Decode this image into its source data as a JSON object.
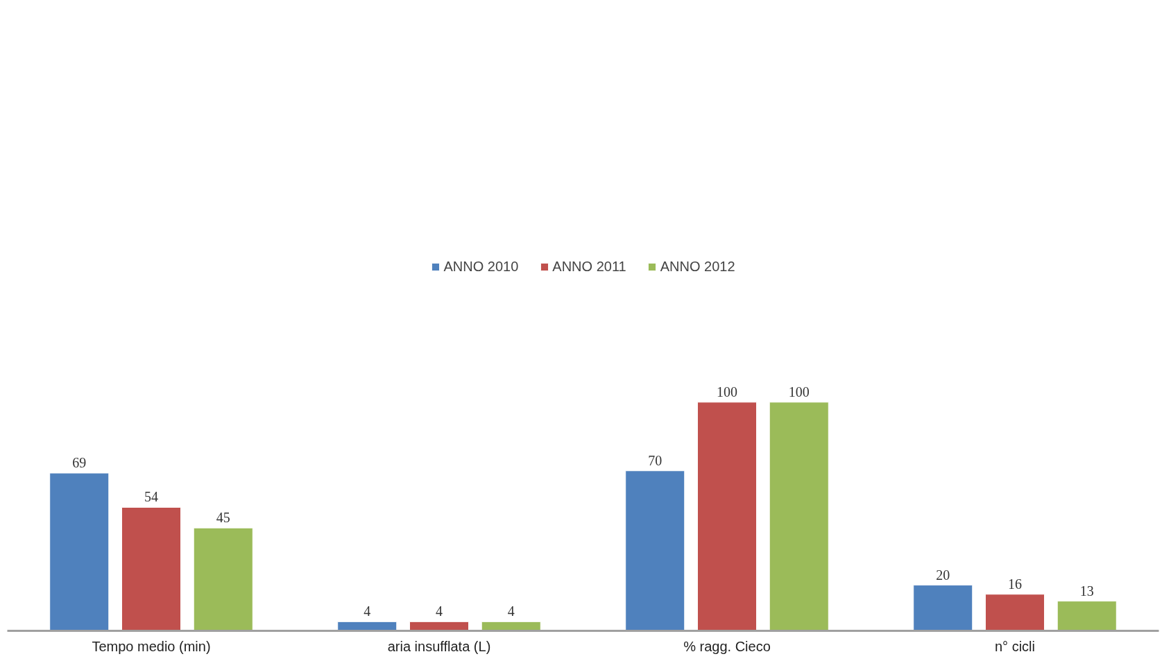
{
  "chart_data": {
    "type": "bar",
    "categories": [
      "Tempo medio (min)",
      "aria insufflata (L)",
      "% ragg. Cieco",
      "n° cicli"
    ],
    "series": [
      {
        "name": "ANNO 2010",
        "color": "#4f81bd",
        "values": [
          69,
          4,
          70,
          20
        ]
      },
      {
        "name": "ANNO 2011",
        "color": "#c0504d",
        "values": [
          54,
          4,
          100,
          16
        ]
      },
      {
        "name": "ANNO 2012",
        "color": "#9bbb59",
        "values": [
          45,
          4,
          100,
          13
        ]
      }
    ],
    "data_labels": true,
    "legend": "top",
    "grid": false,
    "tick_labels": "x"
  }
}
